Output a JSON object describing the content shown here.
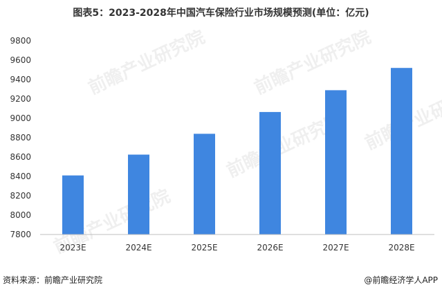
{
  "title": "图表5：2023-2028年中国汽车保险行业市场规模预测(单位：亿元)",
  "watermark": "前瞻产业研究院",
  "footer": {
    "source": "资料来源：前瞻产业研究院",
    "credit": "@前瞻经济学人APP"
  },
  "colors": {
    "bar": "#3f86e0",
    "axis": "#bfbfbf",
    "text": "#333333"
  },
  "chart_data": {
    "type": "bar",
    "categories": [
      "2023E",
      "2024E",
      "2025E",
      "2026E",
      "2027E",
      "2028E"
    ],
    "values": [
      8410,
      8625,
      8840,
      9065,
      9290,
      9520
    ],
    "ylim": [
      7800,
      9800
    ],
    "yticks": [
      "7800",
      "8000",
      "8200",
      "8400",
      "8600",
      "8800",
      "9000",
      "9200",
      "9400",
      "9600",
      "9800"
    ],
    "xlabel": "",
    "ylabel": "",
    "grid": false
  }
}
